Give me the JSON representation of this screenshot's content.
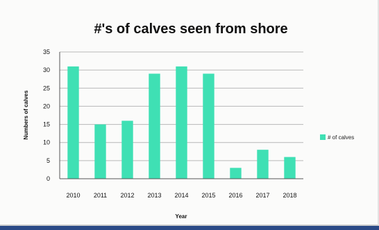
{
  "chart_data": {
    "type": "bar",
    "title": "#'s of calves seen from shore",
    "xlabel": "Year",
    "ylabel": "Numbers of calves",
    "categories": [
      "2010",
      "2011",
      "2012",
      "2013",
      "2014",
      "2015",
      "2016",
      "2017",
      "2018"
    ],
    "series": [
      {
        "name": "# of calves",
        "values": [
          31,
          15,
          16,
          29,
          31,
          29,
          3,
          8,
          6
        ]
      }
    ],
    "ylim": [
      0,
      35
    ],
    "yticks": [
      "0",
      "5",
      "10",
      "15",
      "20",
      "25",
      "30",
      "35"
    ],
    "grid": true,
    "legend_position": "right",
    "bar_color": "#3fe0b4"
  }
}
